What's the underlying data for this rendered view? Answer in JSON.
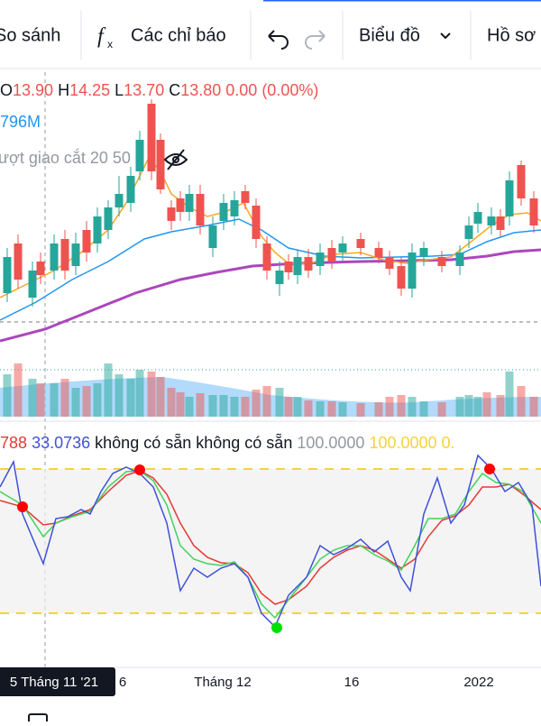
{
  "toolbar": {
    "compare": "So sánh",
    "indicators": "Các chỉ báo",
    "chart_type": "Biểu đồ",
    "profile": "Hồ sơ"
  },
  "legend": {
    "open_label": "O",
    "open": "13.90",
    "high_label": "H",
    "high": "14.25",
    "low_label": "L",
    "low": "13.70",
    "close_label": "C",
    "close": "13.80",
    "change": "0.00 (0.00%)",
    "volume": "796M",
    "indicator_name": "ượt giao cắt 20 50"
  },
  "oscillator_legend": {
    "k": "788",
    "d": "33.0736",
    "na_1": "không có sẵn",
    "na_2": "không có sẵn",
    "upper_1": "100.0000",
    "upper_2": "100.0000",
    "extra": "0."
  },
  "time_axis": {
    "crosshair_label": "5 Tháng 11 '21",
    "labels": [
      "6",
      "Tháng 12",
      "16",
      "2022"
    ]
  }
}
